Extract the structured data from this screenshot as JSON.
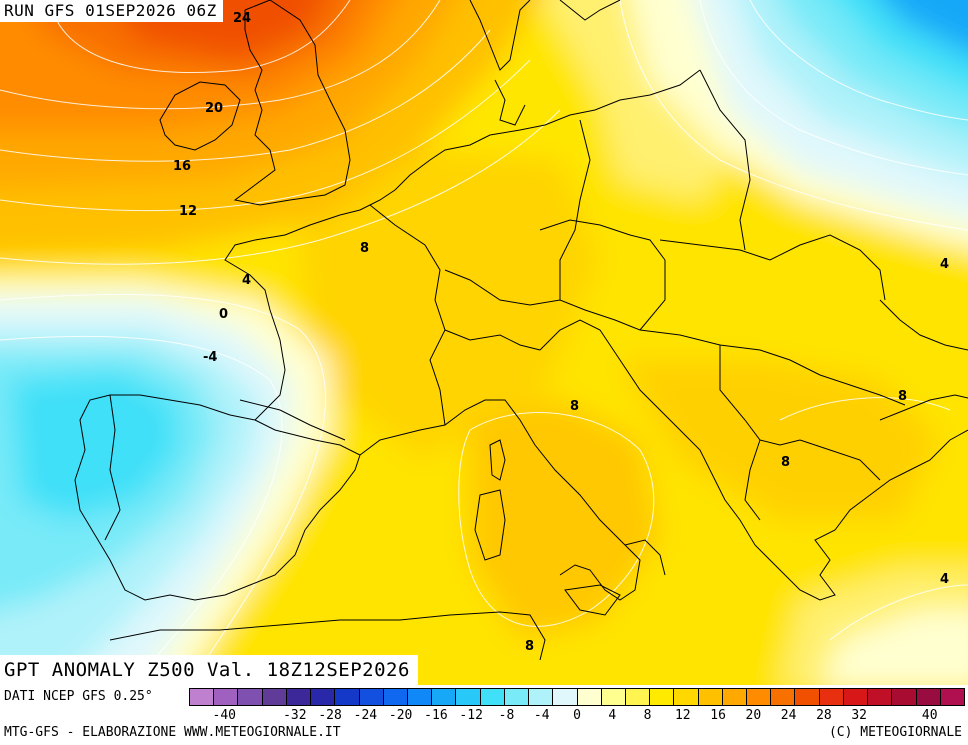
{
  "header": {
    "run": "RUN GFS 01SEP2026 06Z"
  },
  "title": "GPT ANOMALY Z500 Val. 18Z12SEP2026",
  "footer": {
    "data_source": "DATI NCEP GFS 0.25°",
    "credit": "MTG-GFS - ELABORAZIONE WWW.METEOGIORNALE.IT",
    "copyright": "(C) METEOGIORNALE"
  },
  "legend": {
    "colors": [
      "#c080d0",
      "#a060c0",
      "#8050b0",
      "#603c98",
      "#3c2898",
      "#2828a8",
      "#1438c8",
      "#1450e0",
      "#1068f0",
      "#1088f8",
      "#18a8f8",
      "#28c8f8",
      "#40e0f8",
      "#78eaf8",
      "#b0f2fa",
      "#e0f8fc",
      "#ffffd0",
      "#ffff90",
      "#fff450",
      "#ffea00",
      "#ffd800",
      "#ffc000",
      "#ffa800",
      "#ff8c00",
      "#f87000",
      "#f05000",
      "#e83010",
      "#d81818",
      "#c01028",
      "#a80c30",
      "#980c40",
      "#b01050"
    ],
    "ticks": [
      "-40",
      "-32",
      "-28",
      "-24",
      "-20",
      "-16",
      "-12",
      "-8",
      "-4",
      "0",
      "4",
      "8",
      "12",
      "16",
      "20",
      "24",
      "28",
      "32",
      "40"
    ],
    "tick_values": [
      -40,
      -32,
      -28,
      -24,
      -20,
      -16,
      -12,
      -8,
      -4,
      0,
      4,
      8,
      12,
      16,
      20,
      24,
      28,
      32,
      40
    ]
  },
  "contour_labels": [
    "24",
    "20",
    "16",
    "12",
    "8",
    "4",
    "0",
    "-4",
    "8",
    "8",
    "8",
    "8",
    "4",
    "4",
    "8"
  ]
}
